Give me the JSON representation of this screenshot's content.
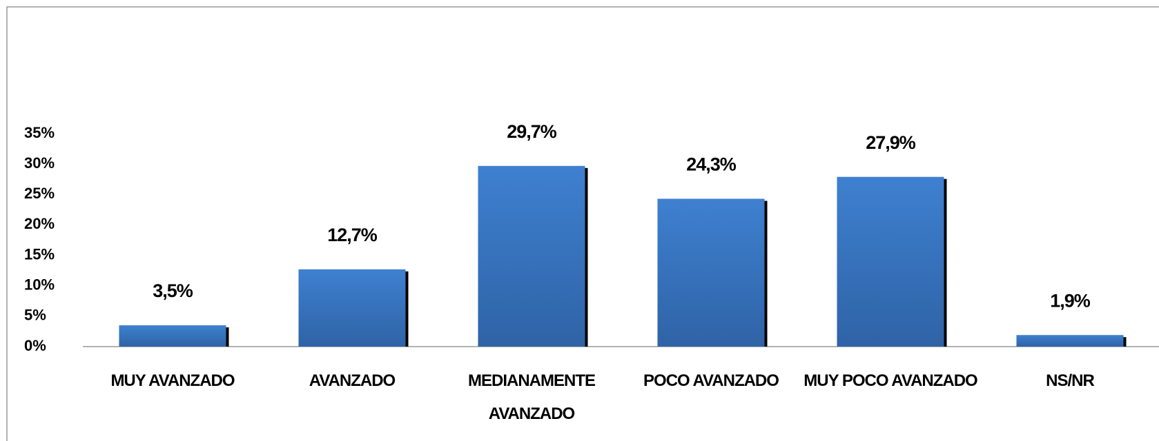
{
  "chart_data": {
    "type": "bar",
    "categories": [
      "MUY AVANZADO",
      "AVANZADO",
      "MEDIANAMENTE AVANZADO",
      "POCO AVANZADO",
      "MUY POCO AVANZADO",
      "NS/NR"
    ],
    "values": [
      3.5,
      12.7,
      29.7,
      24.3,
      27.9,
      1.9
    ],
    "value_labels": [
      "3,5%",
      "12,7%",
      "29,7%",
      "24,3%",
      "27,9%",
      "1,9%"
    ],
    "color": "#3b7bc8",
    "ylim": [
      0,
      35
    ],
    "yticks": [
      {
        "value": 0,
        "label": "0%"
      },
      {
        "value": 5,
        "label": "5%"
      },
      {
        "value": 10,
        "label": "10%"
      },
      {
        "value": 15,
        "label": "15%"
      },
      {
        "value": 20,
        "label": "20%"
      },
      {
        "value": 25,
        "label": "25%"
      },
      {
        "value": 30,
        "label": "30%"
      },
      {
        "value": 35,
        "label": "35%"
      }
    ],
    "grid": false
  }
}
